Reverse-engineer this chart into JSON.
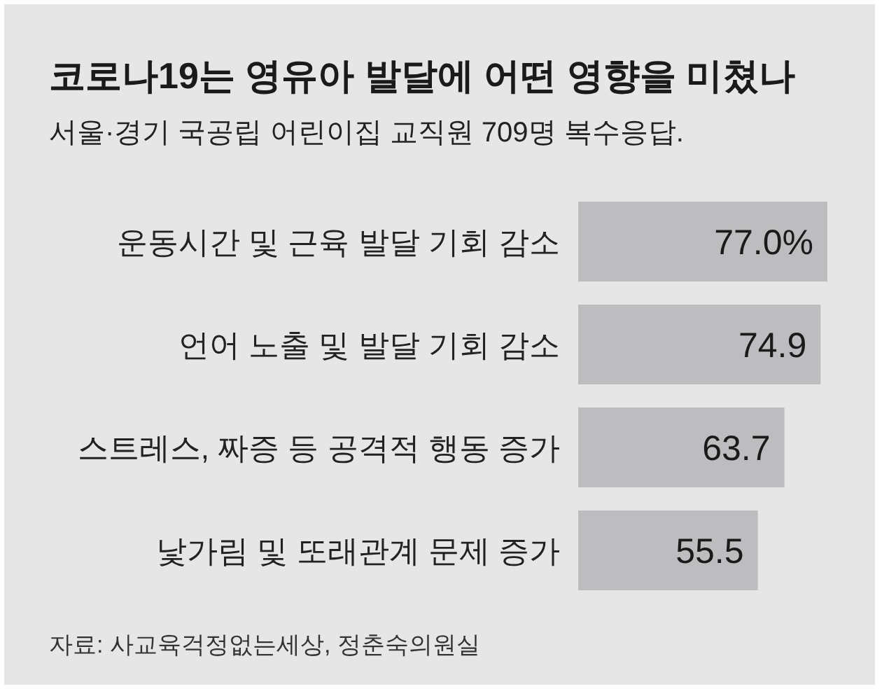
{
  "chart_data": {
    "type": "bar",
    "orientation": "horizontal",
    "title": "코로나19는 영유아 발달에 어떤 영향을 미쳤나",
    "subtitle": "서울·경기 국공립 어린이집 교직원 709명 복수응답.",
    "categories": [
      "운동시간 및 근육 발달 기회 감소",
      "언어 노출 및 발달 기회 감소",
      "스트레스, 짜증 등 공격적 행동 증가",
      "낯가림 및 또래관계 문제 증가"
    ],
    "values": [
      77.0,
      74.9,
      63.7,
      55.5
    ],
    "value_labels": [
      "77.0%",
      "74.9",
      "63.7",
      "55.5"
    ],
    "color": "#bdbdbf",
    "annotations": [
      "자료: 사교육걱정없는세상, 정춘숙의원실"
    ]
  }
}
